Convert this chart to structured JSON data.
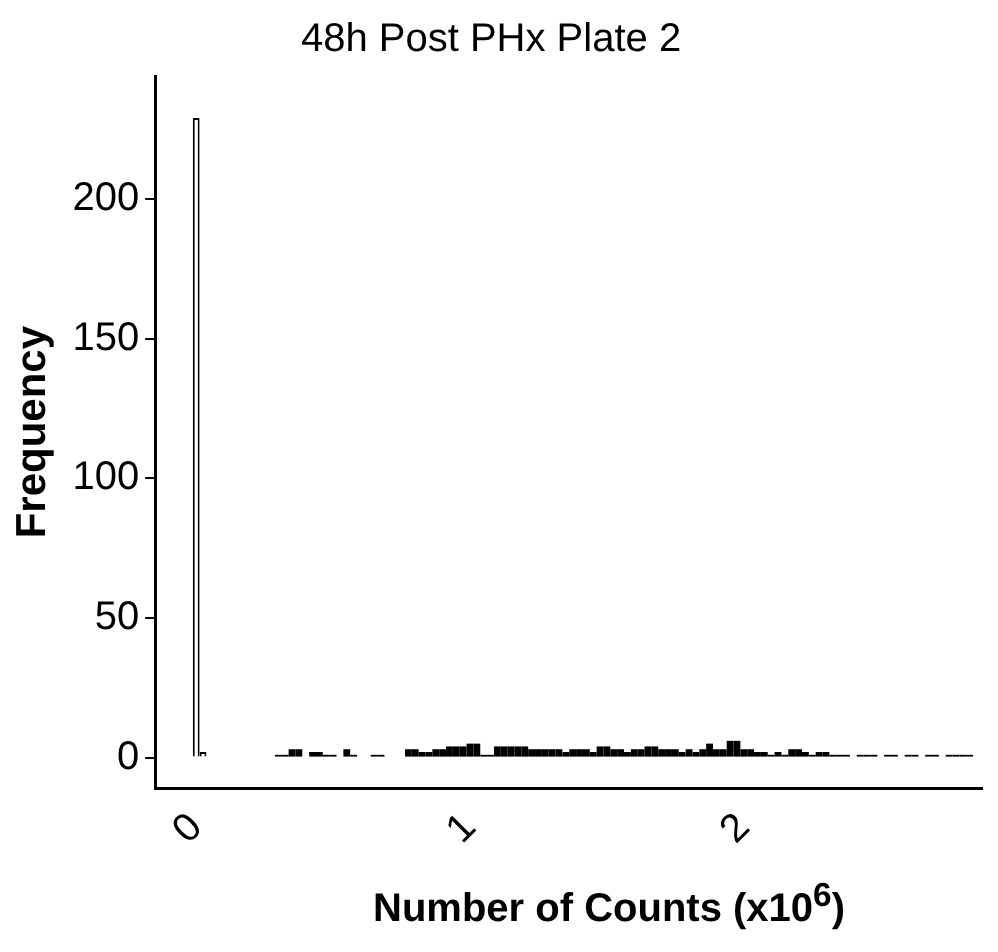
{
  "chart_data": {
    "type": "histogram",
    "title": "48h Post PHx Plate 2",
    "xlabel": "Number of Counts (x10$^{6}$)",
    "ylabel": "Frequency",
    "bins": [
      -0.0125,
      0.0125,
      0.0375,
      0.0625,
      0.0875,
      0.1125,
      0.1375,
      0.1625,
      0.1875,
      0.2125,
      0.2375,
      0.2625,
      0.2875,
      0.3125,
      0.3375,
      0.3625,
      0.3875,
      0.4125,
      0.4375,
      0.4625,
      0.4875,
      0.5125,
      0.5375,
      0.5625,
      0.5875,
      0.6125,
      0.6375,
      0.6625,
      0.6875,
      0.7125,
      0.7375,
      0.7625,
      0.7875,
      0.8125,
      0.8375,
      0.8625,
      0.8875,
      0.9125,
      0.9375,
      0.9625,
      0.9875,
      1.0125,
      1.0375,
      1.0625,
      1.0875,
      1.1125,
      1.1375,
      1.1625,
      1.1875,
      1.2125,
      1.2375,
      1.2625,
      1.2875,
      1.3125,
      1.3375,
      1.3625,
      1.3875,
      1.4125,
      1.4375,
      1.4625,
      1.4875,
      1.5125,
      1.5375,
      1.5625,
      1.5875,
      1.6125,
      1.6375,
      1.6625,
      1.6875,
      1.7125,
      1.7375,
      1.7625,
      1.7875,
      1.8125,
      1.8375,
      1.8625,
      1.8875,
      1.9125,
      1.9375,
      1.9625,
      1.9875,
      2.0125,
      2.0375,
      2.0625,
      2.0875,
      2.1125,
      2.1375,
      2.1625,
      2.1875,
      2.2125,
      2.2375,
      2.2625,
      2.2875,
      2.3125,
      2.3375,
      2.3625,
      2.3875,
      2.4125,
      2.4375,
      2.4625,
      2.4875,
      2.5125,
      2.5375,
      2.5625,
      2.5875,
      2.6125,
      2.6375,
      2.6625,
      2.6875,
      2.7125,
      2.7375,
      2.7625,
      2.7875,
      2.8125,
      2.8375
    ],
    "values": [
      229,
      2,
      0,
      0,
      0,
      0,
      0,
      0,
      0,
      0,
      0,
      0,
      1,
      1,
      3,
      3,
      0,
      2,
      2,
      1,
      1,
      0,
      3,
      1,
      0,
      0,
      1,
      1,
      0,
      0,
      0,
      3,
      3,
      2,
      2,
      3,
      3,
      4,
      4,
      4,
      5,
      5,
      1,
      1,
      4,
      4,
      4,
      4,
      4,
      3,
      3,
      3,
      3,
      3,
      2,
      3,
      3,
      3,
      2,
      4,
      4,
      3,
      3,
      2,
      3,
      3,
      4,
      4,
      3,
      3,
      3,
      2,
      3,
      2,
      3,
      5,
      3,
      3,
      6,
      6,
      3,
      3,
      2,
      2,
      1,
      2,
      1,
      3,
      3,
      2,
      1,
      2,
      2,
      1,
      1,
      1,
      0,
      1,
      1,
      1,
      0,
      1,
      1,
      0,
      1,
      1,
      0,
      1,
      1,
      0,
      1,
      1,
      1,
      1
    ],
    "colors": [
      "#ffffff",
      "#ffffff",
      "#000000",
      "#000000",
      "#000000",
      "#000000",
      "#000000",
      "#000000",
      "#000000",
      "#000000",
      "#000000",
      "#000000",
      "#000000",
      "#000000",
      "#000000",
      "#000000",
      "#000000",
      "#000000",
      "#000000",
      "#000000",
      "#000000",
      "#000000",
      "#000000",
      "#000000",
      "#000000",
      "#000000",
      "#000000",
      "#000000",
      "#000000",
      "#000000",
      "#000000",
      "#000000",
      "#000000",
      "#000000",
      "#000000",
      "#000000",
      "#000000",
      "#000000",
      "#000000",
      "#000000",
      "#000000",
      "#000000",
      "#000000",
      "#000000",
      "#000000",
      "#000000",
      "#000000",
      "#000000",
      "#000000",
      "#000000",
      "#000000",
      "#000000",
      "#000000",
      "#000000",
      "#000000",
      "#000000",
      "#000000",
      "#000000",
      "#000000",
      "#000000",
      "#000000",
      "#000000",
      "#000000",
      "#000000",
      "#000000",
      "#000000",
      "#000000",
      "#000000",
      "#000000",
      "#000000",
      "#000000",
      "#000000",
      "#000000",
      "#000000",
      "#000000",
      "#000000",
      "#000000",
      "#000000",
      "#000000",
      "#000000",
      "#000000",
      "#000000",
      "#000000",
      "#000000",
      "#000000",
      "#000000",
      "#000000",
      "#000000",
      "#000000",
      "#000000",
      "#000000",
      "#000000",
      "#000000",
      "#000000",
      "#000000",
      "#000000",
      "#000000",
      "#000000",
      "#000000",
      "#000000",
      "#000000",
      "#000000",
      "#000000",
      "#000000",
      "#000000",
      "#000000",
      "#000000",
      "#000000",
      "#000000",
      "#000000",
      "#000000",
      "#000000",
      "#000000",
      "#000000"
    ],
    "xlim": [
      -0.15,
      2.87
    ],
    "ylim": [
      -11,
      244
    ],
    "xticks": [
      0,
      1,
      2
    ],
    "yticks": [
      0,
      50,
      100,
      150,
      200
    ]
  }
}
